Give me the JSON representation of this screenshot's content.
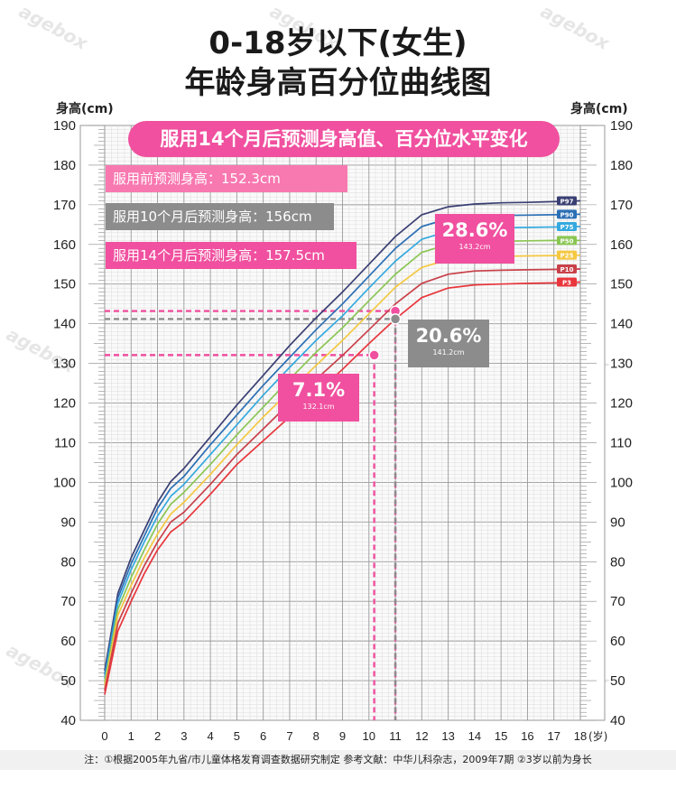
{
  "title_line1": "0-18岁以下(女生)",
  "title_line2": "年龄身高百分位曲线图",
  "watermark": "agebox",
  "banner": "服用14个月后预测身高值、百分位水平变化",
  "predictions": {
    "before": "服用前预测身高：152.3cm",
    "after10": "服用10个月后预测身高：156cm",
    "after14": "服用14个月后预测身高：157.5cm"
  },
  "callouts": {
    "p286": {
      "pct": "28.6%",
      "cm": "143.2cm",
      "color": "#f0509f"
    },
    "p206": {
      "pct": "20.6%",
      "cm": "141.2cm",
      "color": "#8c8c8c"
    },
    "p71": {
      "pct": "7.1%",
      "cm": "132.1cm",
      "color": "#f0509f"
    }
  },
  "footnote": "注：①根据2005年九省/市儿童体格发育调查数据研究制定  参考文献：中华儿科杂志，2009年7期  ②3岁以前为身长",
  "chart_data": {
    "type": "line",
    "ylabel": "身高(cm)",
    "ylabel_right": "身高(cm)",
    "xlabel": "(岁)",
    "xlim": [
      0,
      18
    ],
    "ylim": [
      40,
      190
    ],
    "x_ticks": [
      "0",
      "1",
      "2",
      "3",
      "4",
      "5",
      "6",
      "7",
      "8",
      "9",
      "10",
      "11",
      "12",
      "13",
      "14",
      "15",
      "16",
      "17",
      "18"
    ],
    "y_ticks": [
      "40",
      "50",
      "60",
      "70",
      "80",
      "90",
      "100",
      "110",
      "120",
      "130",
      "140",
      "150",
      "160",
      "170",
      "180",
      "190"
    ],
    "grid": true,
    "x": [
      0,
      0.5,
      1,
      1.5,
      2,
      2.5,
      3,
      4,
      5,
      6,
      7,
      8,
      9,
      10,
      11,
      12,
      13,
      14,
      15,
      16,
      17,
      18
    ],
    "series": [
      {
        "name": "P97",
        "color": "#3a3f73",
        "values": [
          52.5,
          72.0,
          81.0,
          88.0,
          95.0,
          100.2,
          103.5,
          111.5,
          119.5,
          127.0,
          134.5,
          141.5,
          148.0,
          155.0,
          162.0,
          167.5,
          169.5,
          170.2,
          170.5,
          170.6,
          170.8,
          171.0
        ]
      },
      {
        "name": "P90",
        "color": "#2b6fb5",
        "values": [
          51.5,
          70.8,
          79.5,
          86.5,
          93.5,
          98.5,
          101.5,
          109.5,
          117.0,
          124.5,
          131.5,
          138.5,
          145.0,
          152.0,
          159.0,
          164.5,
          166.5,
          167.0,
          167.3,
          167.4,
          167.5,
          167.6
        ]
      },
      {
        "name": "P75",
        "color": "#35a9df",
        "values": [
          50.5,
          69.5,
          78.0,
          85.0,
          91.5,
          96.5,
          99.5,
          107.0,
          114.5,
          122.0,
          129.0,
          135.8,
          142.0,
          149.0,
          155.8,
          161.3,
          163.3,
          164.0,
          164.2,
          164.3,
          164.4,
          164.5
        ]
      },
      {
        "name": "P50",
        "color": "#8ac653",
        "values": [
          49.5,
          68.0,
          76.0,
          83.0,
          89.5,
          94.5,
          97.5,
          104.5,
          112.0,
          119.0,
          126.0,
          132.8,
          139.0,
          145.8,
          152.5,
          158.0,
          160.0,
          160.6,
          160.8,
          160.9,
          161.0,
          161.0
        ]
      },
      {
        "name": "P25",
        "color": "#f5c842",
        "values": [
          48.5,
          66.5,
          74.0,
          81.0,
          87.0,
          92.0,
          95.0,
          102.0,
          109.5,
          116.5,
          123.0,
          129.5,
          135.8,
          142.5,
          149.2,
          154.2,
          156.2,
          156.8,
          157.0,
          157.1,
          157.2,
          157.3
        ]
      },
      {
        "name": "P10",
        "color": "#c9414a",
        "values": [
          47.5,
          64.5,
          72.0,
          79.0,
          85.0,
          90.0,
          92.5,
          99.5,
          107.0,
          113.5,
          120.0,
          126.0,
          132.0,
          138.5,
          145.0,
          150.2,
          152.5,
          153.3,
          153.5,
          153.6,
          153.7,
          153.8
        ]
      },
      {
        "name": "P3",
        "color": "#e8363c",
        "values": [
          46.5,
          62.5,
          70.0,
          77.0,
          83.0,
          87.5,
          90.0,
          97.0,
          104.5,
          110.5,
          116.5,
          122.5,
          128.5,
          135.0,
          141.2,
          146.6,
          149.0,
          149.8,
          150.0,
          150.2,
          150.3,
          150.5
        ]
      }
    ],
    "markers": [
      {
        "age": 11.0,
        "height": 143.2,
        "color": "#f0509f"
      },
      {
        "age": 11.0,
        "height": 141.2,
        "color": "#8c8c8c"
      },
      {
        "age": 10.2,
        "height": 132.1,
        "color": "#f0509f"
      }
    ],
    "ref_lines": [
      {
        "age": 11.0,
        "height": 143.2,
        "color": "#f0509f"
      },
      {
        "age": 11.0,
        "height": 141.2,
        "color": "#8c8c8c"
      },
      {
        "age": 10.2,
        "height": 132.1,
        "color": "#f0509f"
      }
    ]
  }
}
